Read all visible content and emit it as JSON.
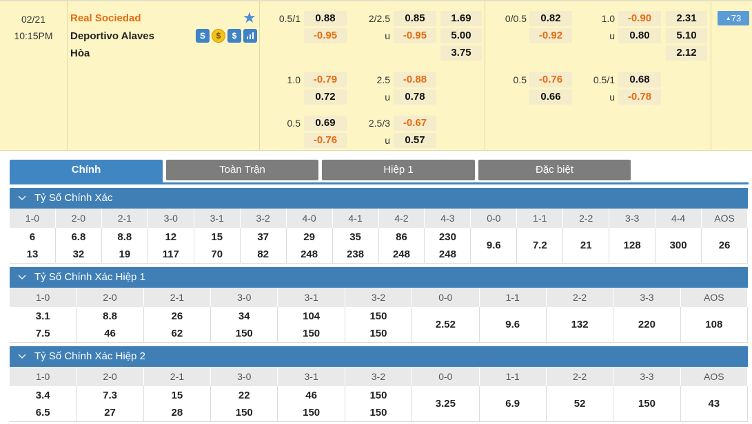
{
  "match": {
    "date": "02/21",
    "time": "10:15PM",
    "home": "Real Sociedad",
    "away": "Deportivo Alaves",
    "draw": "Hòa",
    "icons": [
      "S",
      "$",
      "$",
      "stats-icon"
    ],
    "more_count": "73",
    "ft_handicap": [
      {
        "line": "0.5/1",
        "home": "0.88",
        "away": "-0.95"
      },
      {
        "line": "1.0",
        "home": "-0.79",
        "away": "0.72"
      },
      {
        "line": "0.5",
        "home": "0.69",
        "away": "-0.76"
      }
    ],
    "ft_ou": [
      {
        "line": "2/2.5",
        "over": "0.85",
        "u": "u",
        "under": "-0.95"
      },
      {
        "line": "2.5",
        "over": "-0.88",
        "u": "u",
        "under": "0.78"
      },
      {
        "line": "2.5/3",
        "over": "-0.67",
        "u": "u",
        "under": "0.57"
      }
    ],
    "ft_1x2": [
      "1.69",
      "5.00",
      "3.75"
    ],
    "ht_handicap": [
      {
        "line": "0/0.5",
        "home": "0.82",
        "away": "-0.92"
      },
      {
        "line": "0.5",
        "home": "-0.76",
        "away": "0.66"
      }
    ],
    "ht_ou": [
      {
        "line": "1.0",
        "over": "-0.90",
        "u": "u",
        "under": "0.80"
      },
      {
        "line": "0.5/1",
        "over": "0.68",
        "u": "u",
        "under": "-0.78"
      }
    ],
    "ht_1x2": [
      "2.31",
      "5.10",
      "2.12"
    ]
  },
  "tabs": [
    "Chính",
    "Toàn Trận",
    "Hiệp 1",
    "Đặc biệt"
  ],
  "sections": [
    {
      "title": "Tỷ Số Chính Xác",
      "cols": [
        {
          "h": "1-0",
          "a": "6",
          "b": "13"
        },
        {
          "h": "2-0",
          "a": "6.8",
          "b": "32"
        },
        {
          "h": "2-1",
          "a": "8.8",
          "b": "19"
        },
        {
          "h": "3-0",
          "a": "12",
          "b": "117"
        },
        {
          "h": "3-1",
          "a": "15",
          "b": "70"
        },
        {
          "h": "3-2",
          "a": "37",
          "b": "82"
        },
        {
          "h": "4-0",
          "a": "29",
          "b": "248"
        },
        {
          "h": "4-1",
          "a": "35",
          "b": "238"
        },
        {
          "h": "4-2",
          "a": "86",
          "b": "248"
        },
        {
          "h": "4-3",
          "a": "230",
          "b": "248"
        },
        {
          "h": "0-0",
          "a": "9.6"
        },
        {
          "h": "1-1",
          "a": "7.2"
        },
        {
          "h": "2-2",
          "a": "21"
        },
        {
          "h": "3-3",
          "a": "128"
        },
        {
          "h": "4-4",
          "a": "300"
        },
        {
          "h": "AOS",
          "a": "26"
        }
      ]
    },
    {
      "title": "Tỷ Số Chính Xác Hiệp 1",
      "cols": [
        {
          "h": "1-0",
          "a": "3.1",
          "b": "7.5"
        },
        {
          "h": "2-0",
          "a": "8.8",
          "b": "46"
        },
        {
          "h": "2-1",
          "a": "26",
          "b": "62"
        },
        {
          "h": "3-0",
          "a": "34",
          "b": "150"
        },
        {
          "h": "3-1",
          "a": "104",
          "b": "150"
        },
        {
          "h": "3-2",
          "a": "150",
          "b": "150"
        },
        {
          "h": "0-0",
          "a": "2.52"
        },
        {
          "h": "1-1",
          "a": "9.6"
        },
        {
          "h": "2-2",
          "a": "132"
        },
        {
          "h": "3-3",
          "a": "220"
        },
        {
          "h": "AOS",
          "a": "108"
        }
      ]
    },
    {
      "title": "Tỷ Số Chính Xác Hiệp 2",
      "cols": [
        {
          "h": "1-0",
          "a": "3.4",
          "b": "6.5"
        },
        {
          "h": "2-0",
          "a": "7.3",
          "b": "27"
        },
        {
          "h": "2-1",
          "a": "15",
          "b": "28"
        },
        {
          "h": "3-0",
          "a": "22",
          "b": "150"
        },
        {
          "h": "3-1",
          "a": "46",
          "b": "150"
        },
        {
          "h": "3-2",
          "a": "150",
          "b": "150"
        },
        {
          "h": "0-0",
          "a": "3.25"
        },
        {
          "h": "1-1",
          "a": "6.9"
        },
        {
          "h": "2-2",
          "a": "52"
        },
        {
          "h": "3-3",
          "a": "150"
        },
        {
          "h": "AOS",
          "a": "43"
        }
      ]
    }
  ]
}
